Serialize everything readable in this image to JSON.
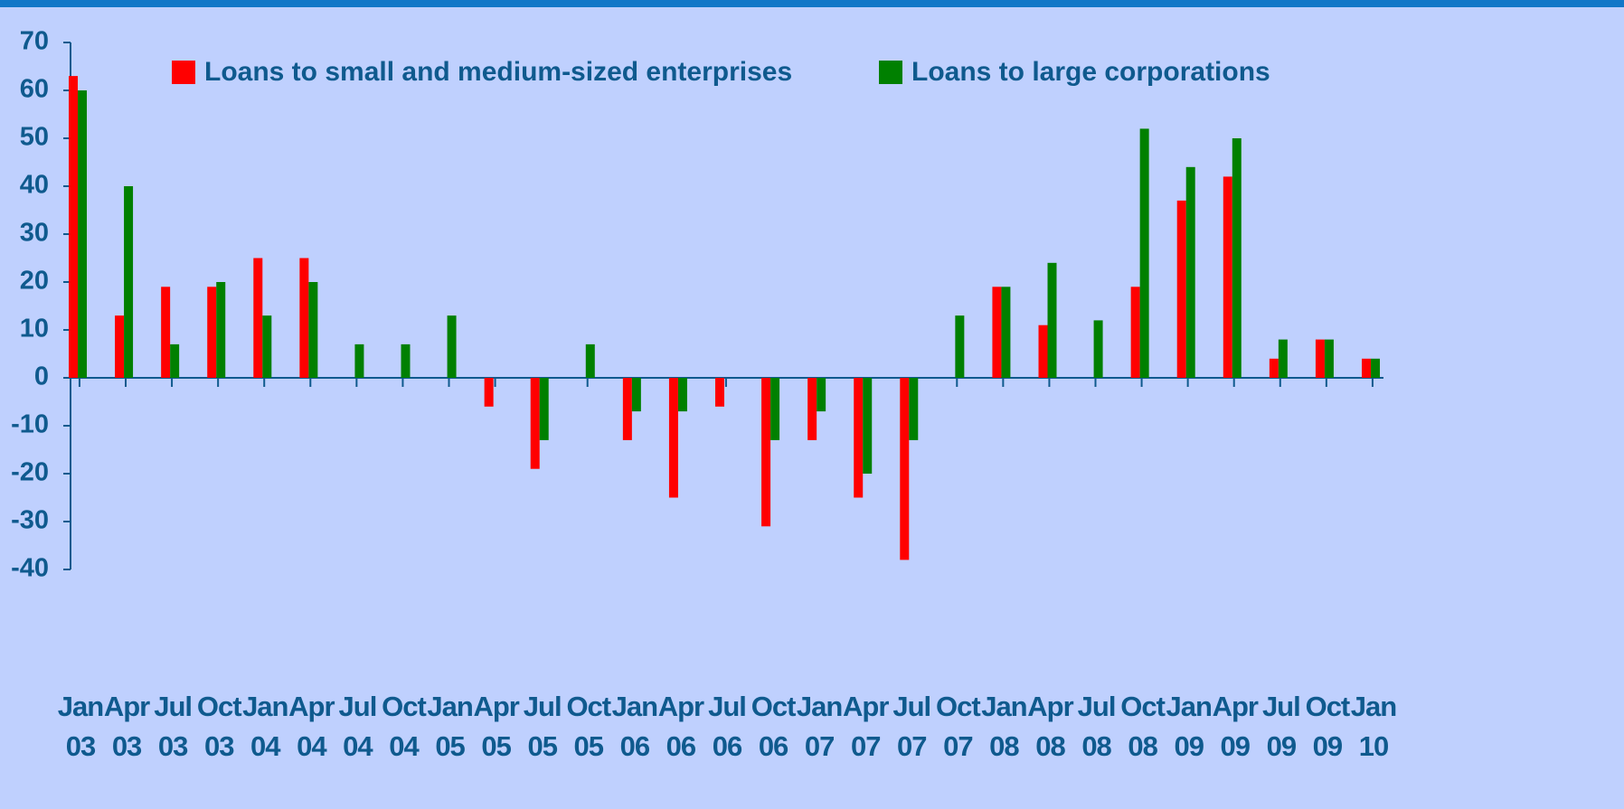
{
  "chart_data": {
    "type": "bar",
    "categories": [
      "Jan 03",
      "Apr 03",
      "Jul 03",
      "Oct 03",
      "Jan 04",
      "Apr 04",
      "Jul 04",
      "Oct 04",
      "Jan 05",
      "Apr 05",
      "Jul 05",
      "Oct 05",
      "Jan 06",
      "Apr 06",
      "Jul 06",
      "Oct 06",
      "Jan 07",
      "Apr 07",
      "Jul 07",
      "Oct 07",
      "Jan 08",
      "Apr 08",
      "Jul 08",
      "Oct 08",
      "Jan 09",
      "Apr 09",
      "Jul 09",
      "Oct 09",
      "Jan 10"
    ],
    "series": [
      {
        "name": "Loans to small and medium-sized enterprises",
        "color": "#ff0000",
        "values": [
          63,
          13,
          19,
          19,
          25,
          25,
          0,
          0,
          0,
          -6,
          -19,
          0,
          -13,
          -25,
          -6,
          -31,
          -13,
          -25,
          -38,
          0,
          19,
          11,
          0,
          19,
          37,
          42,
          4,
          8,
          4
        ]
      },
      {
        "name": "Loans to large corporations",
        "color": "#008000",
        "values": [
          60,
          40,
          7,
          20,
          13,
          20,
          7,
          7,
          13,
          0,
          -13,
          7,
          -7,
          -7,
          0,
          -13,
          -7,
          -20,
          -13,
          13,
          19,
          24,
          12,
          52,
          44,
          50,
          8,
          8,
          4
        ]
      }
    ],
    "ylim": [
      -40,
      70
    ],
    "yticks": [
      -40,
      -30,
      -20,
      -10,
      0,
      10,
      20,
      30,
      40,
      50,
      60,
      70
    ]
  }
}
